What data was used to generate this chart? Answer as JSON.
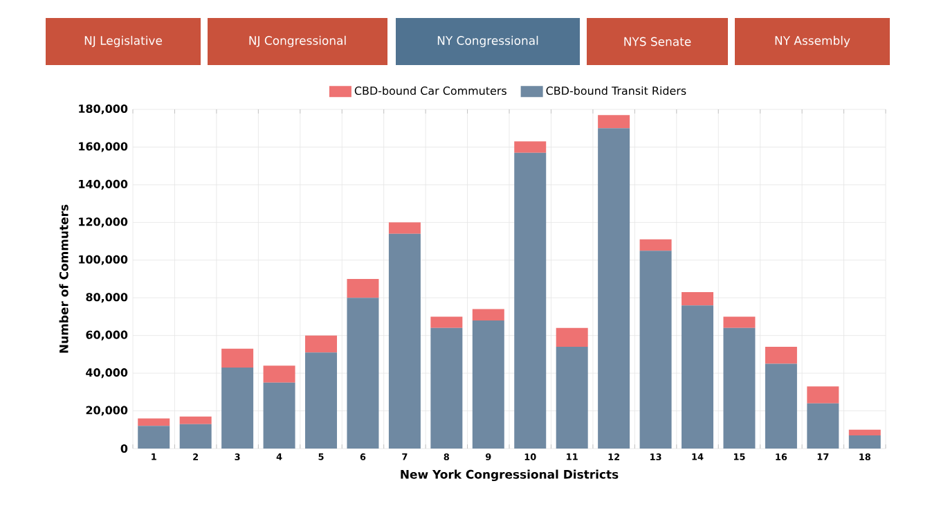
{
  "chart_data": {
    "type": "bar",
    "stacked": true,
    "xlabel": "New York Congressional Districts",
    "ylabel": "Number of Commuters",
    "annotations": [
      "NJ Legislative",
      "NJ Congressional",
      "NY Congressional",
      "NYS Senate",
      "NY Assembly"
    ],
    "categories": [
      "1",
      "2",
      "3",
      "4",
      "5",
      "6",
      "7",
      "8",
      "9",
      "10",
      "11",
      "12",
      "13",
      "14",
      "15",
      "16",
      "17",
      "18"
    ],
    "series": [
      {
        "name": "CBD-bound Transit Riders",
        "color": "#6f89a2",
        "values": [
          12000,
          13000,
          43000,
          35000,
          51000,
          80000,
          114000,
          64000,
          68000,
          157000,
          54000,
          170000,
          105000,
          76000,
          64000,
          45000,
          24000,
          7000
        ]
      },
      {
        "name": "CBD-bound Car Commuters",
        "color": "#ee7272",
        "values": [
          4000,
          4000,
          10000,
          9000,
          9000,
          10000,
          6000,
          6000,
          6000,
          6000,
          10000,
          7000,
          6000,
          7000,
          6000,
          9000,
          9000,
          3000
        ]
      }
    ],
    "ylim": [
      0,
      180000
    ],
    "yticks": [
      {
        "value": 0,
        "label": "0"
      },
      {
        "value": 20000,
        "label": "20,000"
      },
      {
        "value": 40000,
        "label": "40,000"
      },
      {
        "value": 60000,
        "label": "60,000"
      },
      {
        "value": 80000,
        "label": "80,000"
      },
      {
        "value": 100000,
        "label": "100,000"
      },
      {
        "value": 120000,
        "label": "120,000"
      },
      {
        "value": 140000,
        "label": "140,000"
      },
      {
        "value": 160000,
        "label": "160,000"
      },
      {
        "value": 180000,
        "label": "180,000"
      }
    ],
    "grid": true,
    "legend": "top"
  }
}
